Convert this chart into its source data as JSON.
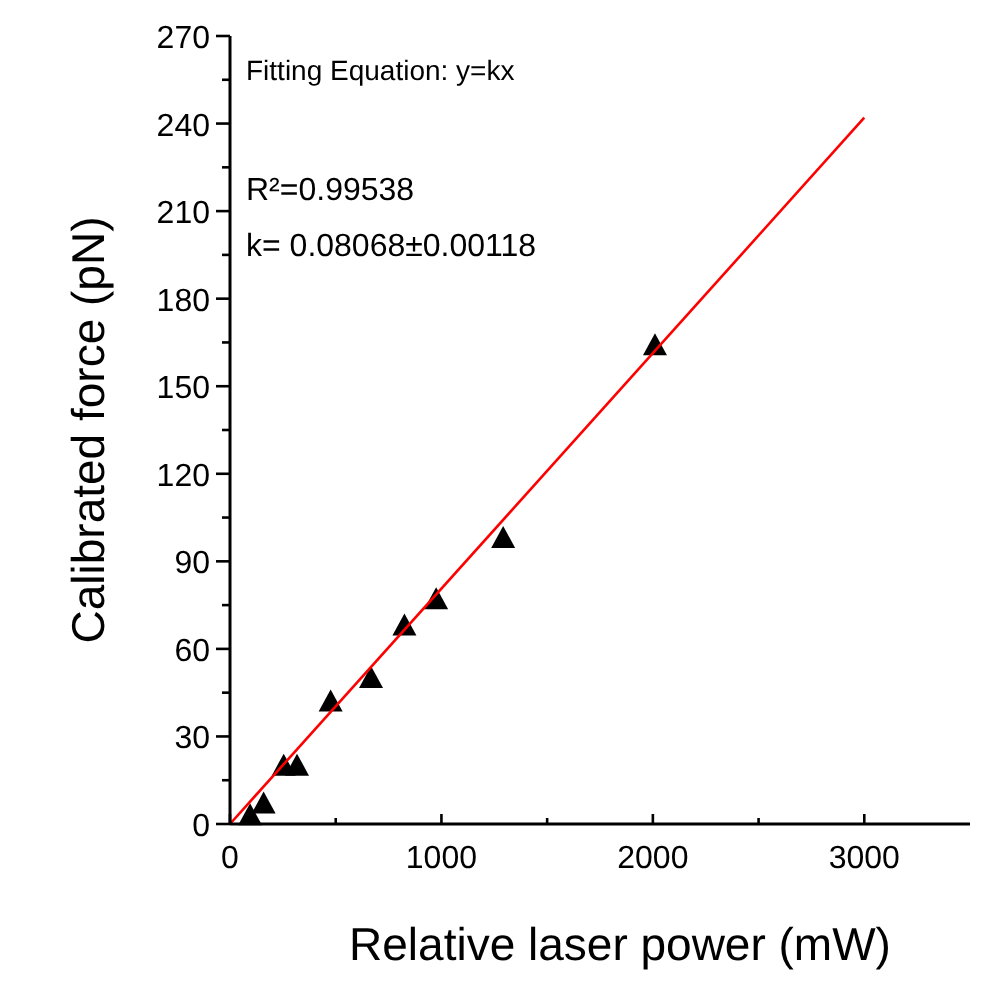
{
  "chart_data": {
    "type": "scatter",
    "xlabel": "Relative laser power (mW)",
    "ylabel": "Calibrated force (pN)",
    "xlim": [
      0,
      3500
    ],
    "ylim": [
      0,
      270
    ],
    "xticks": [
      0,
      {
        "value": 500,
        "label": null
      },
      1000,
      {
        "value": 1500,
        "label": null
      },
      2000,
      {
        "value": 2500,
        "label": null
      },
      3000
    ],
    "yticks": [
      0,
      {
        "value": 15,
        "label": null
      },
      30,
      {
        "value": 45,
        "label": null
      },
      60,
      {
        "value": 75,
        "label": null
      },
      90,
      {
        "value": 105,
        "label": null
      },
      120,
      {
        "value": 135,
        "label": null
      },
      150,
      {
        "value": 165,
        "label": null
      },
      180,
      {
        "value": 195,
        "label": null
      },
      210,
      {
        "value": 225,
        "label": null
      },
      240,
      {
        "value": 255,
        "label": null
      },
      270
    ],
    "grid": false,
    "annotations": [
      "Fitting Equation: y=kx",
      "R²=0.99538",
      "k= 0.08068±0.00118"
    ],
    "series": [
      {
        "color": "#000000",
        "marker": "triangle",
        "x": [
          95,
          159,
          254,
          317,
          476,
          667,
          825,
          975,
          1292,
          2010
        ],
        "values": [
          3,
          7,
          20,
          20,
          42,
          50,
          68,
          77,
          98,
          164
        ]
      },
      {
        "type": "line",
        "color": "#ff0000",
        "marker": "none",
        "line_style": "solid",
        "x": [
          0,
          3000
        ],
        "values": [
          0,
          242
        ]
      }
    ]
  }
}
